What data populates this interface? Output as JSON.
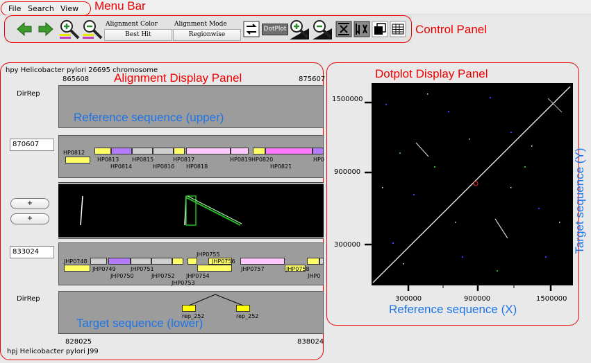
{
  "menu": {
    "file": "File",
    "search": "Search",
    "view": "View"
  },
  "annotations": {
    "menu_bar": "Menu Bar",
    "control_panel": "Control Panel",
    "alignment_panel": "Alignment Display Panel",
    "dotplot_panel": "Dotplot Display Panel",
    "reference_upper": "Reference sequence (upper)",
    "target_lower": "Target sequence (lower)",
    "reference_x": "Reference sequence (X)",
    "target_y": "Target sequence (Y)"
  },
  "controls": {
    "alignment_color_label": "Alignment Color",
    "alignment_color_value": "Best Hit",
    "alignment_mode_label": "Alignment Mode",
    "alignment_mode_value": "Regionwise",
    "dotplot_button": "DotPlot"
  },
  "alignment": {
    "reference_title": "hpy Helicobacter pylori 26695 chromosome",
    "reference_start": "865608",
    "reference_end": "875607",
    "dirrep_top": "DirRep",
    "dirrep_bottom": "DirRep",
    "ref_position": "870607",
    "target_position": "833024",
    "zoom_in": "+",
    "zoom_in_2": "+",
    "target_start": "828025",
    "target_end": "838024",
    "target_title": "hpj Helicobacter pylori J99",
    "rep_labels": [
      "rep_252",
      "rep_252"
    ]
  },
  "ref_genes": [
    "HP0812",
    "HP0813",
    "HP0814",
    "HP0815",
    "HP0816",
    "HP0817",
    "HP0818",
    "HP0819",
    "HP0820",
    "HP0821",
    "HP0"
  ],
  "tgt_genes": [
    "JHP0748",
    "JHP0749",
    "JHP0750",
    "JHP0751",
    "JHP0752",
    "JHP0753",
    "JHP0754",
    "JHP0755",
    "JHP0756",
    "JHP0757",
    "JHP0758",
    "JHP0"
  ],
  "dotplot": {
    "y_ticks": [
      "1500000",
      "900000",
      "300000"
    ],
    "x_ticks": [
      "300000",
      "900000",
      "1500000"
    ]
  },
  "colors": {
    "annotation_red": "#e00000",
    "annotation_blue": "#1e74e6",
    "gene_yellow": "#ffff66",
    "gene_purple": "#b57bff",
    "gene_pink": "#ffc8ff",
    "gene_magenta": "#ff77ff"
  }
}
